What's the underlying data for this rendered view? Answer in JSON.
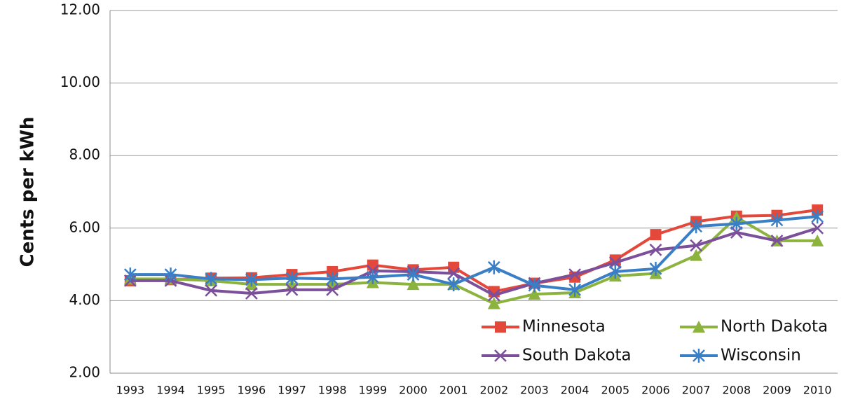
{
  "chart_data": {
    "type": "line",
    "y_label": "Cents per kWh",
    "categories": [
      "1993",
      "1994",
      "1995",
      "1996",
      "1997",
      "1998",
      "1999",
      "2000",
      "2001",
      "2002",
      "2003",
      "2004",
      "2005",
      "2006",
      "2007",
      "2008",
      "2009",
      "2010"
    ],
    "series": [
      {
        "name": "Minnesota",
        "color": "#e4483a",
        "marker": "square",
        "values": [
          4.55,
          4.58,
          4.62,
          4.63,
          4.72,
          4.8,
          4.98,
          4.85,
          4.92,
          4.25,
          4.48,
          4.65,
          5.12,
          5.82,
          6.18,
          6.33,
          6.35,
          6.5
        ]
      },
      {
        "name": "North Dakota",
        "color": "#8db33f",
        "marker": "triangle",
        "values": [
          4.6,
          4.6,
          4.55,
          4.45,
          4.45,
          4.45,
          4.5,
          4.45,
          4.45,
          3.92,
          4.18,
          4.22,
          4.68,
          4.75,
          5.25,
          6.3,
          5.65,
          5.65
        ]
      },
      {
        "name": "South Dakota",
        "color": "#7b4f9a",
        "marker": "x",
        "values": [
          4.55,
          4.55,
          4.28,
          4.2,
          4.3,
          4.3,
          4.82,
          4.8,
          4.75,
          4.15,
          4.48,
          4.72,
          5.05,
          5.4,
          5.52,
          5.88,
          5.65,
          6.0
        ]
      },
      {
        "name": "Wisconsin",
        "color": "#3a7fc6",
        "marker": "star",
        "values": [
          4.72,
          4.72,
          4.6,
          4.58,
          4.62,
          4.6,
          4.65,
          4.72,
          4.45,
          4.92,
          4.42,
          4.3,
          4.8,
          4.88,
          6.05,
          6.12,
          6.22,
          6.32
        ]
      }
    ],
    "ylim": [
      2,
      12
    ],
    "yticks": [
      {
        "value": 2,
        "label": "2.00"
      },
      {
        "value": 4,
        "label": "4.00"
      },
      {
        "value": 6,
        "label": "6.00"
      },
      {
        "value": 8,
        "label": "8.00"
      },
      {
        "value": 10,
        "label": "10.00"
      },
      {
        "value": 12,
        "label": "12.00"
      }
    ],
    "grid": true,
    "legend": "lower right"
  }
}
